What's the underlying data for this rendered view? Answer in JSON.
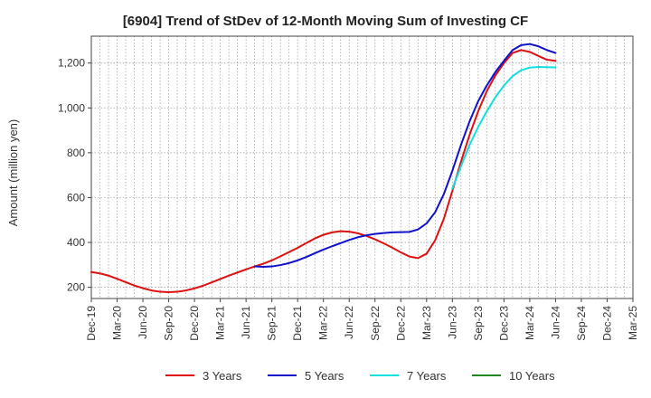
{
  "chart_data": {
    "type": "line",
    "title": "[6904]  Trend of StDev of 12-Month Moving Sum of Investing CF",
    "xlabel": "",
    "ylabel": "Amount (million yen)",
    "ylim": [
      150,
      1320
    ],
    "yticks": [
      200,
      400,
      600,
      800,
      1000,
      1200
    ],
    "ytick_labels": [
      "200",
      "400",
      "600",
      "800",
      "1,000",
      "1,200"
    ],
    "x_tick_labels": [
      "Dec-19",
      "Mar-20",
      "Jun-20",
      "Sep-20",
      "Dec-20",
      "Mar-21",
      "Jun-21",
      "Sep-21",
      "Dec-21",
      "Mar-22",
      "Jun-22",
      "Sep-22",
      "Dec-22",
      "Mar-23",
      "Jun-23",
      "Sep-23",
      "Dec-23",
      "Mar-24",
      "Jun-24",
      "Sep-24",
      "Dec-24",
      "Mar-25"
    ],
    "grid": true,
    "legend_position": "bottom",
    "series": [
      {
        "name": "3 Years",
        "color": "#dd1111",
        "points": [
          [
            0,
            268
          ],
          [
            1,
            262
          ],
          [
            2,
            252
          ],
          [
            3,
            238
          ],
          [
            4,
            223
          ],
          [
            5,
            208
          ],
          [
            6,
            196
          ],
          [
            7,
            186
          ],
          [
            8,
            180
          ],
          [
            9,
            178
          ],
          [
            10,
            180
          ],
          [
            11,
            186
          ],
          [
            12,
            195
          ],
          [
            13,
            207
          ],
          [
            14,
            222
          ],
          [
            15,
            237
          ],
          [
            16,
            252
          ],
          [
            17,
            266
          ],
          [
            18,
            280
          ],
          [
            19,
            293
          ],
          [
            20,
            305
          ],
          [
            21,
            320
          ],
          [
            22,
            338
          ],
          [
            23,
            357
          ],
          [
            24,
            376
          ],
          [
            25,
            397
          ],
          [
            26,
            418
          ],
          [
            27,
            434
          ],
          [
            28,
            445
          ],
          [
            29,
            450
          ],
          [
            30,
            448
          ],
          [
            31,
            441
          ],
          [
            32,
            429
          ],
          [
            33,
            414
          ],
          [
            34,
            396
          ],
          [
            35,
            377
          ],
          [
            36,
            356
          ],
          [
            37,
            337
          ],
          [
            38,
            330
          ],
          [
            39,
            350
          ],
          [
            40,
            410
          ],
          [
            41,
            505
          ],
          [
            42,
            630
          ],
          [
            43,
            760
          ],
          [
            44,
            880
          ],
          [
            45,
            985
          ],
          [
            46,
            1075
          ],
          [
            47,
            1145
          ],
          [
            48,
            1200
          ],
          [
            49,
            1245
          ],
          [
            50,
            1258
          ],
          [
            51,
            1250
          ],
          [
            52,
            1232
          ],
          [
            53,
            1215
          ],
          [
            54,
            1210
          ]
        ]
      },
      {
        "name": "5 Years",
        "color": "#1111cc",
        "points": [
          [
            19,
            293
          ],
          [
            20,
            291
          ],
          [
            21,
            293
          ],
          [
            22,
            299
          ],
          [
            23,
            308
          ],
          [
            24,
            320
          ],
          [
            25,
            335
          ],
          [
            26,
            352
          ],
          [
            27,
            368
          ],
          [
            28,
            383
          ],
          [
            29,
            397
          ],
          [
            30,
            411
          ],
          [
            31,
            423
          ],
          [
            32,
            432
          ],
          [
            33,
            438
          ],
          [
            34,
            442
          ],
          [
            35,
            445
          ],
          [
            36,
            446
          ],
          [
            37,
            447
          ],
          [
            38,
            458
          ],
          [
            39,
            485
          ],
          [
            40,
            535
          ],
          [
            41,
            615
          ],
          [
            42,
            720
          ],
          [
            43,
            835
          ],
          [
            44,
            940
          ],
          [
            45,
            1030
          ],
          [
            46,
            1100
          ],
          [
            47,
            1160
          ],
          [
            48,
            1210
          ],
          [
            49,
            1258
          ],
          [
            50,
            1280
          ],
          [
            51,
            1285
          ],
          [
            52,
            1275
          ],
          [
            53,
            1258
          ],
          [
            54,
            1245
          ]
        ]
      },
      {
        "name": "7 Years",
        "color": "#11e0e0",
        "points": [
          [
            42,
            640
          ],
          [
            43,
            740
          ],
          [
            44,
            835
          ],
          [
            45,
            915
          ],
          [
            46,
            985
          ],
          [
            47,
            1048
          ],
          [
            48,
            1100
          ],
          [
            49,
            1142
          ],
          [
            50,
            1168
          ],
          [
            51,
            1180
          ],
          [
            52,
            1183
          ],
          [
            53,
            1182
          ],
          [
            54,
            1181
          ]
        ]
      },
      {
        "name": "10 Years",
        "color": "#228822",
        "points": []
      }
    ]
  }
}
